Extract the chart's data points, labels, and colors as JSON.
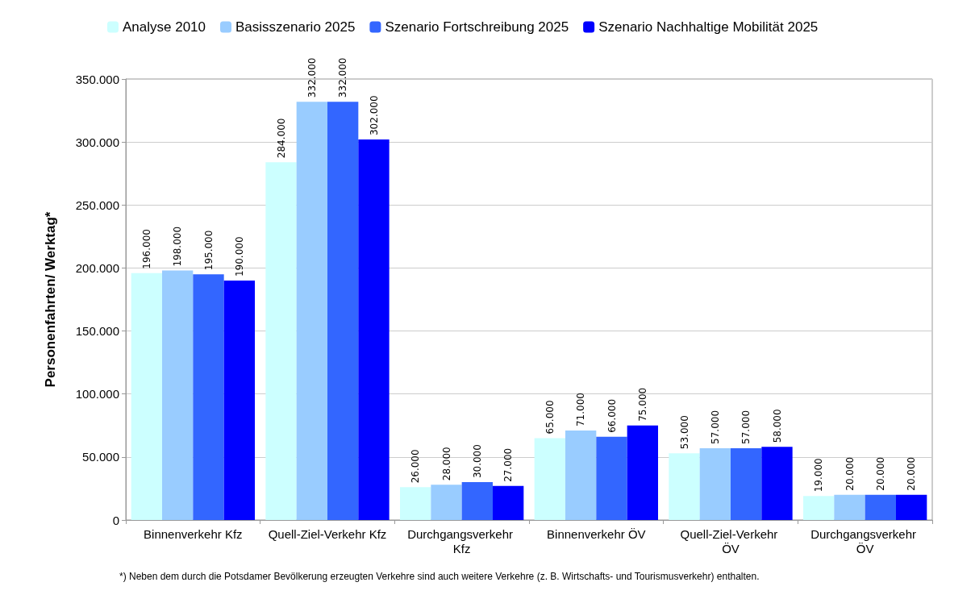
{
  "chart_data": {
    "type": "bar",
    "ylabel": "Personenfahrten/ Werktag*",
    "categories": [
      "Binnenverkehr Kfz",
      "Quell-Ziel-Verkehr Kfz",
      "Durchgangsverkehr Kfz",
      "Binnenverkehr ÖV",
      "Quell-Ziel-Verkehr ÖV",
      "Durchgangsverkehr ÖV"
    ],
    "series": [
      {
        "name": "Analyse 2010",
        "color": "#ccffff",
        "values": [
          196000,
          284000,
          26000,
          65000,
          53000,
          19000
        ],
        "value_labels": [
          "196.000",
          "284.000",
          "26.000",
          "65.000",
          "53.000",
          "19.000"
        ]
      },
      {
        "name": "Basisszenario 2025",
        "color": "#99ccff",
        "values": [
          198000,
          332000,
          28000,
          71000,
          57000,
          20000
        ],
        "value_labels": [
          "198.000",
          "332.000",
          "28.000",
          "71.000",
          "57.000",
          "20.000"
        ]
      },
      {
        "name": "Szenario Fortschreibung 2025",
        "color": "#3366ff",
        "values": [
          195000,
          332000,
          30000,
          66000,
          57000,
          20000
        ],
        "value_labels": [
          "195.000",
          "332.000",
          "30.000",
          "66.000",
          "57.000",
          "20.000"
        ]
      },
      {
        "name": "Szenario Nachhaltige Mobilität 2025",
        "color": "#0000ff",
        "values": [
          190000,
          302000,
          27000,
          75000,
          58000,
          20000
        ],
        "value_labels": [
          "190.000",
          "302.000",
          "27.000",
          "75.000",
          "58.000",
          "20.000"
        ]
      }
    ],
    "ylim": [
      0,
      350000
    ],
    "yticks": [
      0,
      {
        "value": 50000,
        "label": "50.000"
      },
      {
        "value": 100000,
        "label": "100.000"
      },
      {
        "value": 150000,
        "label": "150.000"
      },
      {
        "value": 200000,
        "label": "200.000"
      },
      {
        "value": 250000,
        "label": "250.000"
      },
      {
        "value": 300000,
        "label": "300.000"
      },
      {
        "value": 350000,
        "label": "350.000"
      }
    ],
    "grid": "y",
    "legend": "top",
    "annotations": [
      "*) Neben dem durch die Potsdamer Bevölkerung erzeugten Verkehre sind auch weitere Verkehre (z. B. Wirtschafts- und Tourismusverkehr) enthalten."
    ]
  }
}
